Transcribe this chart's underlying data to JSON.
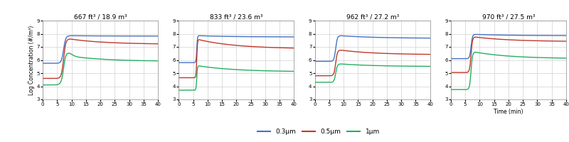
{
  "panels": [
    {
      "title": "667 ft³ / 18.9 m³",
      "blue_baseline": 5.75,
      "blue_peak": 7.85,
      "blue_final": 7.82,
      "red_baseline": 4.6,
      "red_peak": 7.6,
      "red_final": 7.2,
      "green_baseline": 4.1,
      "green_peak": 6.3,
      "green_final": 5.9,
      "rise_start": 5.0,
      "rise_end": 9.5,
      "blue_noise": true,
      "red_noise": false,
      "green_noise": true
    },
    {
      "title": "833 ft³ / 23.6 m³",
      "blue_baseline": 5.8,
      "blue_peak": 7.85,
      "blue_final": 7.75,
      "red_baseline": 4.65,
      "red_peak": 7.55,
      "red_final": 6.85,
      "green_baseline": 3.7,
      "green_peak": 5.55,
      "green_final": 5.1,
      "rise_start": 5.5,
      "rise_end": 7.0,
      "blue_noise": false,
      "red_noise": false,
      "green_noise": false
    },
    {
      "title": "962 ft³ / 27.2 m³",
      "blue_baseline": 5.9,
      "blue_peak": 7.85,
      "blue_final": 7.65,
      "red_baseline": 4.8,
      "red_peak": 6.75,
      "red_final": 6.4,
      "green_baseline": 4.3,
      "green_peak": 5.7,
      "green_final": 5.5,
      "rise_start": 5.5,
      "rise_end": 9.0,
      "blue_noise": false,
      "red_noise": false,
      "green_noise": false
    },
    {
      "title": "970 ft³ / 27.5 m³",
      "blue_baseline": 6.1,
      "blue_peak": 7.95,
      "blue_final": 7.85,
      "red_baseline": 5.05,
      "red_peak": 7.75,
      "red_final": 7.4,
      "green_baseline": 3.75,
      "green_peak": 6.6,
      "green_final": 6.1,
      "rise_start": 5.5,
      "rise_end": 8.5,
      "blue_noise": false,
      "red_noise": false,
      "green_noise": false
    }
  ],
  "ylim": [
    3,
    9
  ],
  "yticks": [
    3,
    4,
    5,
    6,
    7,
    8,
    9
  ],
  "xticks": [
    0,
    5,
    10,
    15,
    20,
    25,
    30,
    35,
    40
  ],
  "xlim": [
    0,
    40
  ],
  "ylabel": "Log Concentration (#/m³)",
  "xlabel_last": "Time (min)",
  "colors": {
    "blue": "#4472C4",
    "red": "#C0392B",
    "green": "#27AE60"
  },
  "legend_labels": [
    "0.3μm",
    "0.5μm",
    "1μm"
  ],
  "bg_color": "#FFFFFF",
  "grid_color": "#D0D0D0"
}
